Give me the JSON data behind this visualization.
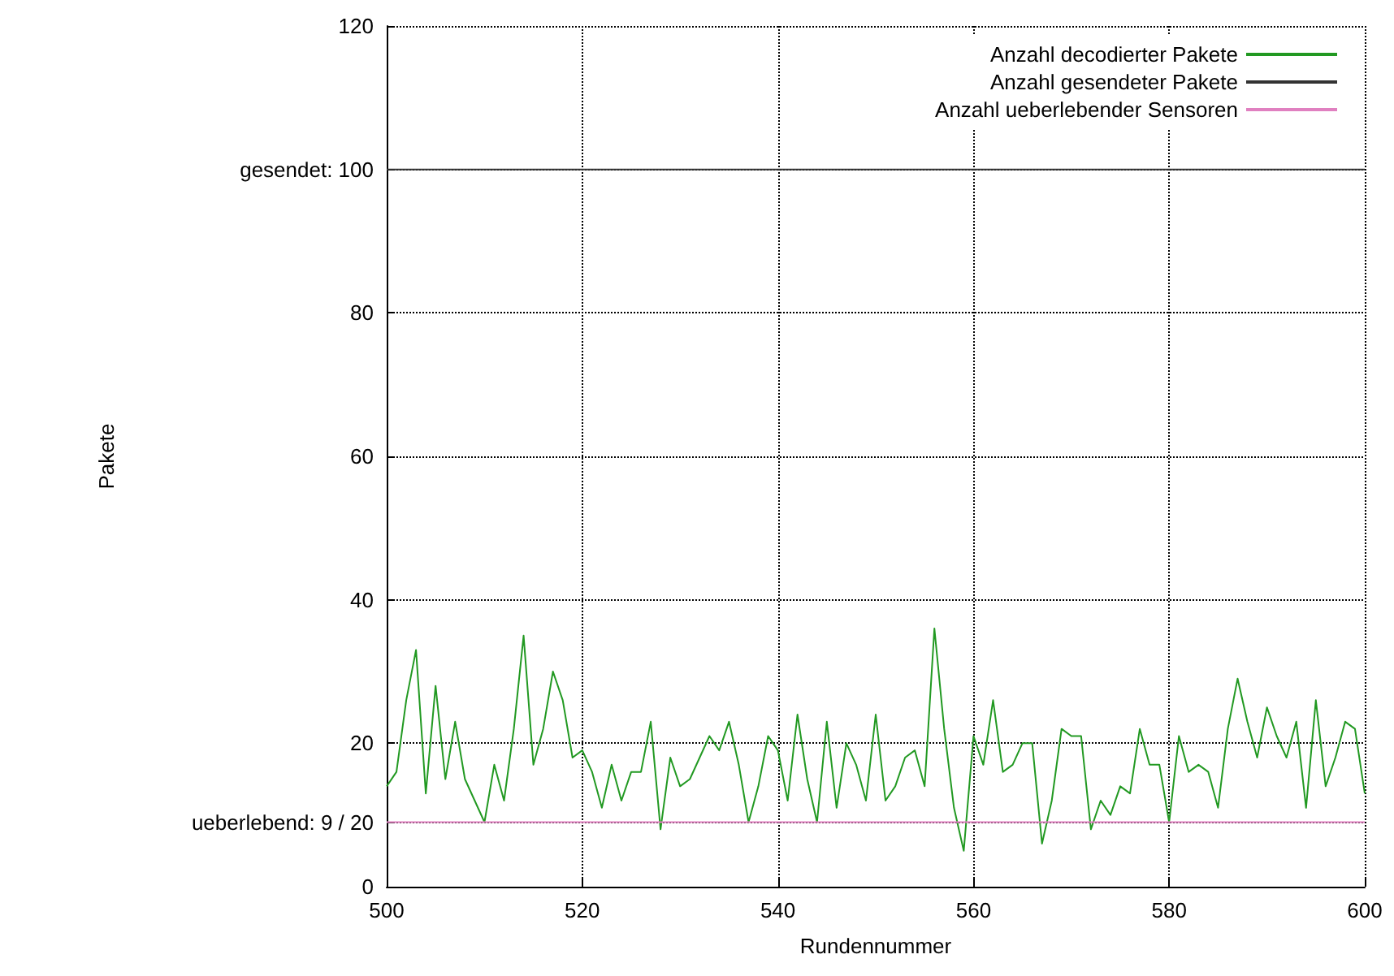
{
  "chart_data": {
    "type": "line",
    "xlabel": "Rundennummer",
    "ylabel": "Pakete",
    "xlim": [
      500,
      600
    ],
    "xticks": [
      500,
      520,
      540,
      560,
      580,
      600
    ],
    "ylim": [
      0,
      120
    ],
    "yticks": [
      0,
      {
        "value": 9,
        "label": "ueberlebend: 9 / 20"
      },
      20,
      40,
      60,
      80,
      {
        "value": 100,
        "label": "gesendet: 100"
      },
      120
    ],
    "grid": true,
    "legend": "top right",
    "line_style": "solid",
    "x": [
      500,
      501,
      502,
      503,
      504,
      505,
      506,
      507,
      508,
      509,
      510,
      511,
      512,
      513,
      514,
      515,
      516,
      517,
      518,
      519,
      520,
      521,
      522,
      523,
      524,
      525,
      526,
      527,
      528,
      529,
      530,
      531,
      532,
      533,
      534,
      535,
      536,
      537,
      538,
      539,
      540,
      541,
      542,
      543,
      544,
      545,
      546,
      547,
      548,
      549,
      550,
      551,
      552,
      553,
      554,
      555,
      556,
      557,
      558,
      559,
      560,
      561,
      562,
      563,
      564,
      565,
      566,
      567,
      568,
      569,
      570,
      571,
      572,
      573,
      574,
      575,
      576,
      577,
      578,
      579,
      580,
      581,
      582,
      583,
      584,
      585,
      586,
      587,
      588,
      589,
      590,
      591,
      592,
      593,
      594,
      595,
      596,
      597,
      598,
      599,
      600
    ],
    "series": [
      {
        "name": "Anzahl decodierter Pakete",
        "color": "#229922",
        "values": [
          14,
          16,
          26,
          33,
          13,
          28,
          15,
          23,
          15,
          12,
          9,
          17,
          12,
          22,
          35,
          17,
          22,
          30,
          26,
          18,
          19,
          16,
          11,
          17,
          12,
          16,
          16,
          23,
          8,
          18,
          14,
          15,
          18,
          21,
          19,
          23,
          17,
          9,
          14,
          21,
          19,
          12,
          24,
          15,
          9,
          23,
          11,
          20,
          17,
          12,
          24,
          12,
          14,
          18,
          19,
          14,
          36,
          22,
          11,
          5,
          21,
          17,
          26,
          16,
          17,
          20,
          20,
          6,
          12,
          22,
          21,
          21,
          8,
          12,
          10,
          14,
          13,
          22,
          17,
          17,
          9,
          21,
          16,
          17,
          16,
          11,
          22,
          29,
          23,
          18,
          25,
          21,
          18,
          23,
          11,
          26,
          14,
          18,
          23,
          22,
          13
        ]
      },
      {
        "name": "Anzahl gesendeter Pakete",
        "color": "#333333",
        "values": [
          100,
          100,
          100,
          100,
          100,
          100,
          100,
          100,
          100,
          100,
          100,
          100,
          100,
          100,
          100,
          100,
          100,
          100,
          100,
          100,
          100,
          100,
          100,
          100,
          100,
          100,
          100,
          100,
          100,
          100,
          100,
          100,
          100,
          100,
          100,
          100,
          100,
          100,
          100,
          100,
          100,
          100,
          100,
          100,
          100,
          100,
          100,
          100,
          100,
          100,
          100,
          100,
          100,
          100,
          100,
          100,
          100,
          100,
          100,
          100,
          100,
          100,
          100,
          100,
          100,
          100,
          100,
          100,
          100,
          100,
          100,
          100,
          100,
          100,
          100,
          100,
          100,
          100,
          100,
          100,
          100,
          100,
          100,
          100,
          100,
          100,
          100,
          100,
          100,
          100,
          100,
          100,
          100,
          100,
          100,
          100,
          100,
          100,
          100,
          100,
          100
        ]
      },
      {
        "name": "Anzahl ueberlebender Sensoren",
        "color": "#e080c0",
        "values": [
          9,
          9,
          9,
          9,
          9,
          9,
          9,
          9,
          9,
          9,
          9,
          9,
          9,
          9,
          9,
          9,
          9,
          9,
          9,
          9,
          9,
          9,
          9,
          9,
          9,
          9,
          9,
          9,
          9,
          9,
          9,
          9,
          9,
          9,
          9,
          9,
          9,
          9,
          9,
          9,
          9,
          9,
          9,
          9,
          9,
          9,
          9,
          9,
          9,
          9,
          9,
          9,
          9,
          9,
          9,
          9,
          9,
          9,
          9,
          9,
          9,
          9,
          9,
          9,
          9,
          9,
          9,
          9,
          9,
          9,
          9,
          9,
          9,
          9,
          9,
          9,
          9,
          9,
          9,
          9,
          9,
          9,
          9,
          9,
          9,
          9,
          9,
          9,
          9,
          9,
          9,
          9,
          9,
          9,
          9,
          9,
          9,
          9,
          9,
          9,
          9
        ]
      }
    ]
  }
}
